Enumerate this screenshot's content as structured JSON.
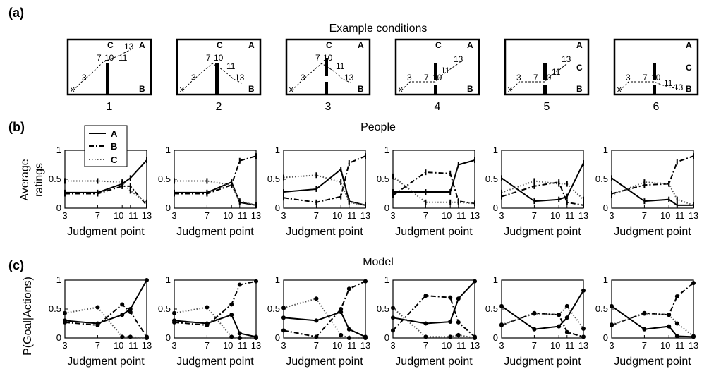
{
  "panel_labels": {
    "a": "(a)",
    "b": "(b)",
    "c": "(c)"
  },
  "section_titles": {
    "a": "Example conditions",
    "b": "People",
    "c": "Model"
  },
  "shared_labels": {
    "xlabel": "Judgment point",
    "ylabel_people_line1": "Average",
    "ylabel_people_line2": "ratings",
    "ylabel_model": "P(Goal|Actions)",
    "marks": {
      "x": "X",
      "a": "A",
      "b": "B",
      "c": "C"
    }
  },
  "legend": {
    "placement": "top-left of first People panel",
    "entries": [
      "A",
      "B",
      "C"
    ]
  },
  "conditions": [
    {
      "label": "1",
      "wall": "solid",
      "goal_c": "top"
    },
    {
      "label": "2",
      "wall": "solid",
      "goal_c": "top"
    },
    {
      "label": "3",
      "wall": "gap",
      "goal_c": "top"
    },
    {
      "label": "4",
      "wall": "raised-gap",
      "goal_c": "top"
    },
    {
      "label": "5",
      "wall": "raised-gap",
      "goal_c": "middle"
    },
    {
      "label": "6",
      "wall": "raised-gap",
      "goal_c": "middle"
    }
  ],
  "chart_data": [
    {
      "type": "line",
      "group": "People",
      "condition": "1",
      "x": [
        3,
        7,
        10,
        11,
        13
      ],
      "xticks": [
        "3",
        "7",
        "10",
        "11",
        "13"
      ],
      "ylim": [
        0,
        1
      ],
      "yticks": [
        "0",
        "0.5",
        "1"
      ],
      "xlabel": "Judgment point",
      "ylabel": "Average ratings",
      "series": [
        {
          "name": "A",
          "values": [
            0.27,
            0.27,
            0.42,
            0.52,
            0.83
          ]
        },
        {
          "name": "B",
          "values": [
            0.25,
            0.25,
            0.38,
            0.38,
            0.05
          ]
        },
        {
          "name": "C",
          "values": [
            0.47,
            0.47,
            0.45,
            0.3,
            0.1
          ]
        }
      ]
    },
    {
      "type": "line",
      "group": "People",
      "condition": "2",
      "x": [
        3,
        7,
        10,
        11,
        13
      ],
      "xticks": [
        "3",
        "7",
        "10",
        "11",
        "13"
      ],
      "ylim": [
        0,
        1
      ],
      "yticks": [
        "0",
        "0.5",
        "1"
      ],
      "xlabel": "Judgment point",
      "ylabel": "",
      "series": [
        {
          "name": "A",
          "values": [
            0.27,
            0.27,
            0.45,
            0.1,
            0.05
          ]
        },
        {
          "name": "B",
          "values": [
            0.25,
            0.25,
            0.4,
            0.82,
            0.9
          ]
        },
        {
          "name": "C",
          "values": [
            0.47,
            0.47,
            0.4,
            0.12,
            0.05
          ]
        }
      ]
    },
    {
      "type": "line",
      "group": "People",
      "condition": "3",
      "x": [
        3,
        7,
        10,
        11,
        13
      ],
      "xticks": [
        "3",
        "7",
        "10",
        "11",
        "13"
      ],
      "ylim": [
        0,
        1
      ],
      "yticks": [
        "0",
        "0.5",
        "1"
      ],
      "xlabel": "Judgment point",
      "ylabel": "",
      "series": [
        {
          "name": "A",
          "values": [
            0.28,
            0.33,
            0.67,
            0.12,
            0.05
          ]
        },
        {
          "name": "B",
          "values": [
            0.18,
            0.1,
            0.2,
            0.78,
            0.9
          ]
        },
        {
          "name": "C",
          "values": [
            0.53,
            0.57,
            0.45,
            0.1,
            0.05
          ]
        }
      ]
    },
    {
      "type": "line",
      "group": "People",
      "condition": "4",
      "x": [
        3,
        7,
        10,
        11,
        13
      ],
      "xticks": [
        "3",
        "7",
        "10",
        "11",
        "13"
      ],
      "ylim": [
        0,
        1
      ],
      "yticks": [
        "0",
        "0.5",
        "1"
      ],
      "xlabel": "Judgment point",
      "ylabel": "",
      "series": [
        {
          "name": "A",
          "values": [
            0.28,
            0.28,
            0.28,
            0.75,
            0.83
          ]
        },
        {
          "name": "B",
          "values": [
            0.22,
            0.62,
            0.6,
            0.12,
            0.08
          ]
        },
        {
          "name": "C",
          "values": [
            0.55,
            0.1,
            0.1,
            0.1,
            0.08
          ]
        }
      ]
    },
    {
      "type": "line",
      "group": "People",
      "condition": "5",
      "x": [
        3,
        7,
        10,
        11,
        13
      ],
      "xticks": [
        "3",
        "7",
        "10",
        "11",
        "13"
      ],
      "ylim": [
        0,
        1
      ],
      "yticks": [
        "0",
        "0.5",
        "1"
      ],
      "xlabel": "Judgment point",
      "ylabel": "",
      "series": [
        {
          "name": "A",
          "values": [
            0.52,
            0.12,
            0.15,
            0.2,
            0.78
          ]
        },
        {
          "name": "B",
          "values": [
            0.2,
            0.38,
            0.45,
            0.1,
            0.05
          ]
        },
        {
          "name": "C",
          "values": [
            0.27,
            0.47,
            0.42,
            0.42,
            0.15
          ]
        }
      ]
    },
    {
      "type": "line",
      "group": "People",
      "condition": "6",
      "x": [
        3,
        7,
        10,
        11,
        13
      ],
      "xticks": [
        "3",
        "7",
        "10",
        "11",
        "13"
      ],
      "ylim": [
        0,
        1
      ],
      "yticks": [
        "0",
        "0.5",
        "1"
      ],
      "xlabel": "Judgment point",
      "ylabel": "",
      "series": [
        {
          "name": "A",
          "values": [
            0.52,
            0.12,
            0.15,
            0.05,
            0.05
          ]
        },
        {
          "name": "B",
          "values": [
            0.25,
            0.4,
            0.42,
            0.8,
            0.9
          ]
        },
        {
          "name": "C",
          "values": [
            0.23,
            0.45,
            0.42,
            0.15,
            0.05
          ]
        }
      ]
    },
    {
      "type": "line",
      "group": "Model",
      "condition": "1",
      "x": [
        3,
        7,
        10,
        11,
        13
      ],
      "xticks": [
        "3",
        "7",
        "10",
        "11",
        "13"
      ],
      "ylim": [
        0,
        1
      ],
      "yticks": [
        "0",
        "0.5",
        "1"
      ],
      "xlabel": "Judgment point",
      "ylabel": "P(Goal|Actions)",
      "series": [
        {
          "name": "A",
          "values": [
            0.3,
            0.25,
            0.4,
            0.5,
            1.0
          ]
        },
        {
          "name": "B",
          "values": [
            0.27,
            0.22,
            0.58,
            0.45,
            0.02
          ]
        },
        {
          "name": "C",
          "values": [
            0.43,
            0.53,
            0.02,
            0.02,
            0.0
          ]
        }
      ]
    },
    {
      "type": "line",
      "group": "Model",
      "condition": "2",
      "x": [
        3,
        7,
        10,
        11,
        13
      ],
      "xticks": [
        "3",
        "7",
        "10",
        "11",
        "13"
      ],
      "ylim": [
        0,
        1
      ],
      "yticks": [
        "0",
        "0.5",
        "1"
      ],
      "xlabel": "Judgment point",
      "ylabel": "",
      "series": [
        {
          "name": "A",
          "values": [
            0.3,
            0.25,
            0.4,
            0.08,
            0.02
          ]
        },
        {
          "name": "B",
          "values": [
            0.27,
            0.22,
            0.58,
            0.92,
            0.98
          ]
        },
        {
          "name": "C",
          "values": [
            0.43,
            0.53,
            0.02,
            0.0,
            0.0
          ]
        }
      ]
    },
    {
      "type": "line",
      "group": "Model",
      "condition": "3",
      "x": [
        3,
        7,
        10,
        11,
        13
      ],
      "xticks": [
        "3",
        "7",
        "10",
        "11",
        "13"
      ],
      "ylim": [
        0,
        1
      ],
      "yticks": [
        "0",
        "0.5",
        "1"
      ],
      "xlabel": "Judgment point",
      "ylabel": "",
      "series": [
        {
          "name": "A",
          "values": [
            0.35,
            0.3,
            0.45,
            0.15,
            0.02
          ]
        },
        {
          "name": "B",
          "values": [
            0.13,
            0.02,
            0.5,
            0.85,
            0.98
          ]
        },
        {
          "name": "C",
          "values": [
            0.52,
            0.68,
            0.05,
            0.0,
            0.0
          ]
        }
      ]
    },
    {
      "type": "line",
      "group": "Model",
      "condition": "4",
      "x": [
        3,
        7,
        10,
        11,
        13
      ],
      "xticks": [
        "3",
        "7",
        "10",
        "11",
        "13"
      ],
      "ylim": [
        0,
        1
      ],
      "yticks": [
        "0",
        "0.5",
        "1"
      ],
      "xlabel": "Judgment point",
      "ylabel": "",
      "series": [
        {
          "name": "A",
          "values": [
            0.35,
            0.25,
            0.28,
            0.68,
            0.98
          ]
        },
        {
          "name": "B",
          "values": [
            0.13,
            0.73,
            0.7,
            0.27,
            0.02
          ]
        },
        {
          "name": "C",
          "values": [
            0.52,
            0.02,
            0.02,
            0.05,
            0.0
          ]
        }
      ]
    },
    {
      "type": "line",
      "group": "Model",
      "condition": "5",
      "x": [
        3,
        7,
        10,
        11,
        13
      ],
      "xticks": [
        "3",
        "7",
        "10",
        "11",
        "13"
      ],
      "ylim": [
        0,
        1
      ],
      "yticks": [
        "0",
        "0.5",
        "1"
      ],
      "xlabel": "Judgment point",
      "ylabel": "",
      "series": [
        {
          "name": "A",
          "values": [
            0.55,
            0.15,
            0.2,
            0.35,
            0.82
          ]
        },
        {
          "name": "B",
          "values": [
            0.22,
            0.43,
            0.4,
            0.1,
            0.02
          ]
        },
        {
          "name": "C",
          "values": [
            0.23,
            0.42,
            0.4,
            0.55,
            0.16
          ]
        }
      ]
    },
    {
      "type": "line",
      "group": "Model",
      "condition": "6",
      "x": [
        3,
        7,
        10,
        11,
        13
      ],
      "xticks": [
        "3",
        "7",
        "10",
        "11",
        "13"
      ],
      "ylim": [
        0,
        1
      ],
      "yticks": [
        "0",
        "0.5",
        "1"
      ],
      "xlabel": "Judgment point",
      "ylabel": "",
      "series": [
        {
          "name": "A",
          "values": [
            0.55,
            0.15,
            0.2,
            0.03,
            0.02
          ]
        },
        {
          "name": "B",
          "values": [
            0.22,
            0.43,
            0.4,
            0.72,
            0.95
          ]
        },
        {
          "name": "C",
          "values": [
            0.23,
            0.42,
            0.4,
            0.25,
            0.03
          ]
        }
      ]
    }
  ]
}
